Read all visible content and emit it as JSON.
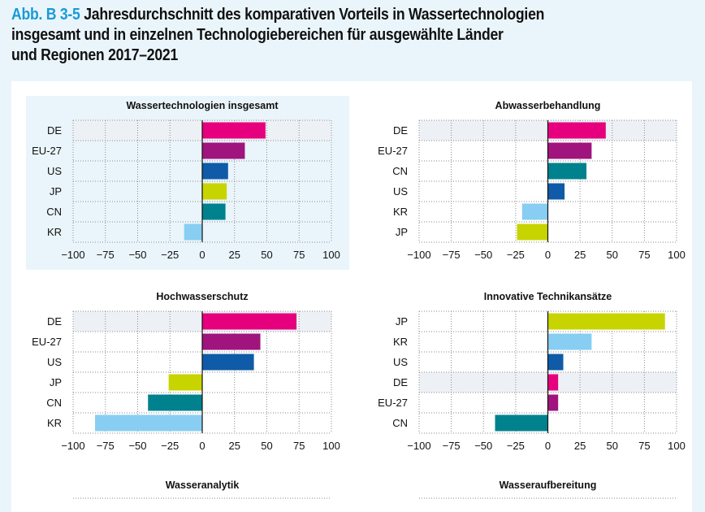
{
  "figure": {
    "number": "Abb. B 3-5",
    "title": "Jahresdurchschnitt des komparativen Vorteils in Wassertechnologien insgesamt und in einzelnen Technologiebereichen für ausgewählte Länder und Regionen 2017–2021",
    "title_lines": [
      "Jahresdurchschnitt des komparativen Vorteils in Wassertechnologien",
      "insgesamt und in einzelnen Technologiebereichen für ausgewählte Länder",
      "und Regionen 2017–2021"
    ]
  },
  "colors": {
    "DE": "#E6007E",
    "EU-27": "#A0147E",
    "US": "#0F5BA7",
    "JP": "#C8D400",
    "CN": "#00818E",
    "KR": "#87CEF2",
    "figure_number": "#1A9AD6",
    "highlight_row": "#EDF1F6",
    "highlight_panel": "#EAF5FB"
  },
  "chart_data": [
    {
      "type": "bar",
      "orientation": "horizontal",
      "title": "Wassertechnologien insgesamt",
      "categories": [
        "DE",
        "EU-27",
        "US",
        "JP",
        "CN",
        "KR"
      ],
      "values": [
        49,
        33,
        20,
        19,
        18,
        -14
      ],
      "xlim": [
        -100,
        100
      ],
      "xticks": [
        -100,
        -75,
        -50,
        -25,
        0,
        25,
        50,
        75,
        100
      ],
      "highlight_category": "DE",
      "highlighted_panel": true,
      "grid": true
    },
    {
      "type": "bar",
      "orientation": "horizontal",
      "title": "Abwasserbehandlung",
      "categories": [
        "DE",
        "EU-27",
        "CN",
        "US",
        "KR",
        "JP"
      ],
      "values": [
        45,
        34,
        30,
        13,
        -20,
        -24
      ],
      "xlim": [
        -100,
        100
      ],
      "xticks": [
        -100,
        -75,
        -50,
        -25,
        0,
        25,
        50,
        75,
        100
      ],
      "highlight_category": "DE",
      "highlighted_panel": false,
      "grid": true
    },
    {
      "type": "bar",
      "orientation": "horizontal",
      "title": "Hochwasserschutz",
      "categories": [
        "DE",
        "EU-27",
        "US",
        "JP",
        "CN",
        "KR"
      ],
      "values": [
        73,
        45,
        40,
        -26,
        -42,
        -83
      ],
      "xlim": [
        -100,
        100
      ],
      "xticks": [
        -100,
        -75,
        -50,
        -25,
        0,
        25,
        50,
        75,
        100
      ],
      "highlight_category": "DE",
      "highlighted_panel": false,
      "grid": true
    },
    {
      "type": "bar",
      "orientation": "horizontal",
      "title": "Innovative Technikansätze",
      "categories": [
        "JP",
        "KR",
        "US",
        "DE",
        "EU-27",
        "CN"
      ],
      "values": [
        91,
        34,
        12,
        8,
        8,
        -41
      ],
      "xlim": [
        -100,
        100
      ],
      "xticks": [
        -100,
        -75,
        -50,
        -25,
        0,
        25,
        50,
        75,
        100
      ],
      "highlight_category": "DE",
      "highlighted_panel": false,
      "grid": true
    },
    {
      "type": "bar",
      "orientation": "horizontal",
      "title": "Wasseranalytik",
      "categories": [],
      "values": [],
      "xlim": [
        -100,
        100
      ],
      "partially_visible": true
    },
    {
      "type": "bar",
      "orientation": "horizontal",
      "title": "Wasseraufbereitung",
      "categories": [],
      "values": [],
      "xlim": [
        -100,
        100
      ],
      "partially_visible": true
    }
  ]
}
